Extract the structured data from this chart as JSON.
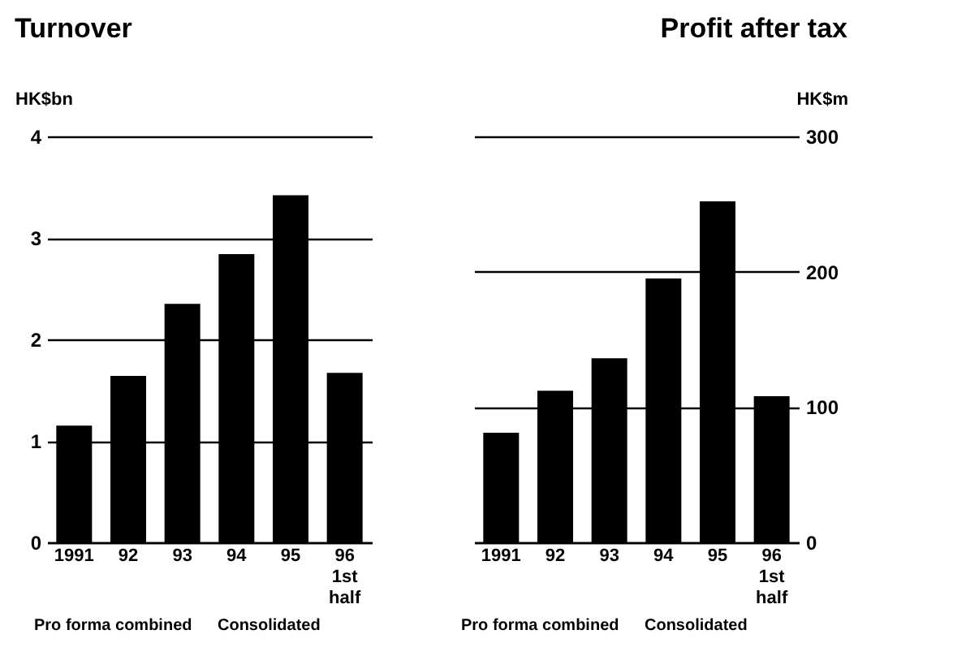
{
  "chart_data": [
    {
      "type": "bar",
      "title": "Turnover",
      "ylabel": "HK$bn",
      "categories": [
        "1991",
        "92",
        "93",
        "94",
        "95",
        "96\n1st\nhalf"
      ],
      "series": [
        {
          "color": "#000000",
          "values": [
            1.15,
            1.64,
            2.35,
            2.84,
            3.42,
            1.67
          ]
        }
      ],
      "ylim": [
        0,
        4
      ],
      "yticks": [
        0,
        1,
        2,
        3,
        4
      ],
      "grid": "y",
      "annotations": [
        "Pro forma combined",
        "Consolidated"
      ]
    },
    {
      "type": "bar",
      "title": "Profit after tax",
      "y2label": "HK$m",
      "categories": [
        "1991",
        "92",
        "93",
        "94",
        "95",
        "96\n1st\nhalf"
      ],
      "series": [
        {
          "color": "#000000",
          "values": [
            81,
            112,
            136,
            195,
            252,
            108
          ],
          "axis": "y2"
        }
      ],
      "y2lim": [
        0,
        300
      ],
      "y2ticks": [
        0,
        100,
        200,
        300
      ],
      "grid": "y",
      "annotations": [
        "Pro forma combined",
        "Consolidated"
      ]
    }
  ]
}
